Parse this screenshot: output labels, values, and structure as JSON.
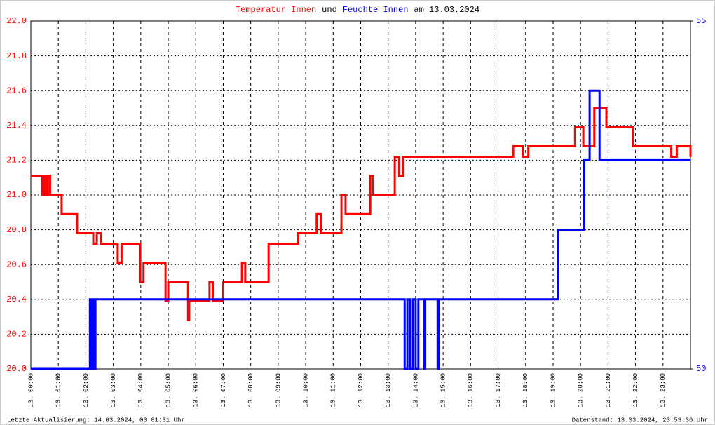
{
  "chart_data": {
    "type": "line",
    "title": {
      "parts": [
        {
          "text": "Temperatur Innen",
          "color": "#ff0000"
        },
        {
          "text": "und",
          "color": "#000000"
        },
        {
          "text": "Feuchte Innen",
          "color": "#0000ff"
        },
        {
          "text": "am 13.03.2024",
          "color": "#000000"
        }
      ]
    },
    "drawstyle": "steps-post",
    "xlim": [
      0,
      24
    ],
    "xticks": [
      {
        "value": 0,
        "label": "13. 00:00"
      },
      {
        "value": 1,
        "label": "13. 01:00"
      },
      {
        "value": 2,
        "label": "13. 02:00"
      },
      {
        "value": 3,
        "label": "13. 03:00"
      },
      {
        "value": 4,
        "label": "13. 04:00"
      },
      {
        "value": 5,
        "label": "13. 05:00"
      },
      {
        "value": 6,
        "label": "13. 06:00"
      },
      {
        "value": 7,
        "label": "13. 07:00"
      },
      {
        "value": 8,
        "label": "13. 08:00"
      },
      {
        "value": 9,
        "label": "13. 09:00"
      },
      {
        "value": 10,
        "label": "13. 10:00"
      },
      {
        "value": 11,
        "label": "13. 11:00"
      },
      {
        "value": 12,
        "label": "13. 12:00"
      },
      {
        "value": 13,
        "label": "13. 13:00"
      },
      {
        "value": 14,
        "label": "13. 14:00"
      },
      {
        "value": 15,
        "label": "13. 15:00"
      },
      {
        "value": 16,
        "label": "13. 16:00"
      },
      {
        "value": 17,
        "label": "13. 17:00"
      },
      {
        "value": 18,
        "label": "13. 18:00"
      },
      {
        "value": 19,
        "label": "13. 19:00"
      },
      {
        "value": 20,
        "label": "13. 20:00"
      },
      {
        "value": 21,
        "label": "13. 21:00"
      },
      {
        "value": 22,
        "label": "13. 22:00"
      },
      {
        "value": 23,
        "label": "13. 23:00"
      }
    ],
    "ylim": [
      20,
      22
    ],
    "yticks": [
      {
        "value": 20,
        "label": "20.0"
      },
      20.2,
      20.4,
      20.6,
      20.8,
      {
        "value": 21,
        "label": "21.0"
      },
      21.2,
      21.4,
      21.6,
      21.8,
      {
        "value": 22,
        "label": "22.0"
      }
    ],
    "y2lim": [
      50,
      55
    ],
    "y2ticks": [
      50,
      55
    ],
    "ytick_color": "#ff0000",
    "y2tick_color": "#0000ff",
    "grid": true,
    "series": [
      {
        "name": "Temperatur Innen",
        "color": "#ff0000",
        "x": [
          0,
          0.42,
          0.48,
          0.55,
          0.62,
          0.7,
          0.78,
          1.12,
          1.68,
          2.27,
          2.4,
          2.55,
          3.16,
          3.3,
          3.98,
          4.1,
          4.9,
          5.0,
          5.72,
          5.76,
          6.5,
          6.62,
          7.0,
          7.68,
          7.8,
          8.65,
          9.72,
          10.4,
          10.55,
          11.3,
          11.45,
          12.35,
          12.45,
          13.24,
          13.4,
          13.55,
          17.55,
          17.9,
          18.1,
          19.29,
          19.8,
          20.1,
          20.5,
          20.94,
          21.9,
          22.1,
          23.3,
          23.5,
          24
        ],
        "values": [
          21.11,
          21.0,
          21.11,
          21.0,
          21.11,
          21.0,
          21.0,
          20.89,
          20.78,
          20.72,
          20.78,
          20.72,
          20.61,
          20.72,
          20.5,
          20.61,
          20.39,
          20.5,
          20.28,
          20.39,
          20.5,
          20.39,
          20.5,
          20.61,
          20.5,
          20.72,
          20.78,
          20.89,
          20.78,
          21.0,
          20.89,
          21.11,
          21.0,
          21.22,
          21.11,
          21.22,
          21.28,
          21.22,
          21.28,
          21.28,
          21.39,
          21.28,
          21.5,
          21.39,
          21.28,
          21.28,
          21.22,
          21.28,
          21.22
        ]
      },
      {
        "name": "Feuchte Innen",
        "color": "#0000ff",
        "axis": "y2",
        "x": [
          0,
          2.15,
          2.2,
          2.25,
          2.3,
          2.35,
          13.6,
          13.7,
          13.8,
          13.9,
          14.0,
          14.1,
          14.3,
          14.35,
          14.8,
          14.85,
          14.95,
          19.18,
          20.13,
          20.33,
          20.69,
          24
        ],
        "values": [
          50,
          51,
          50,
          51,
          50,
          51,
          50,
          51,
          50,
          51,
          50,
          51,
          50,
          51,
          50,
          51,
          51,
          52,
          53,
          54,
          53,
          53
        ]
      }
    ],
    "footer_left": "Letzte Aktualisierung: 14.03.2024, 00:01:31 Uhr",
    "footer_right": "Datenstand: 13.03.2024, 23:59:36 Uhr"
  }
}
